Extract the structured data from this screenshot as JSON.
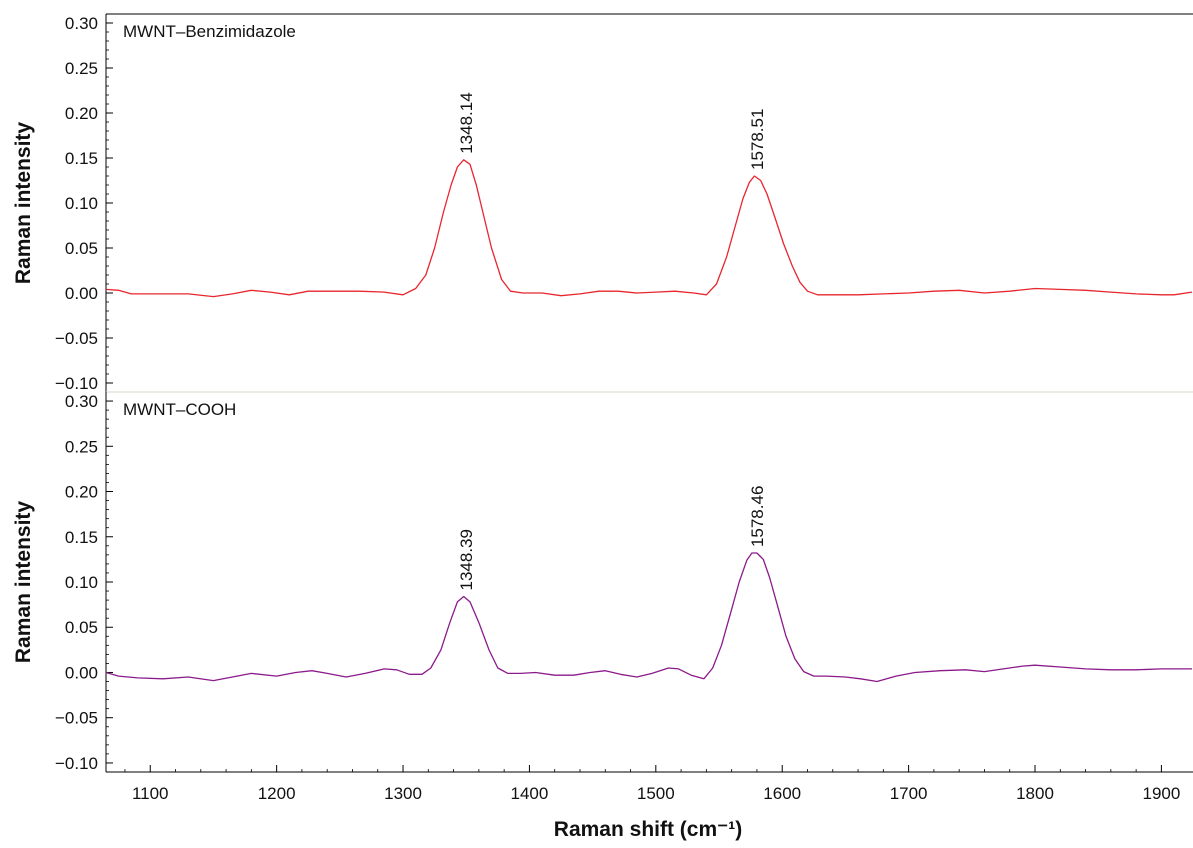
{
  "chart_data": [
    {
      "type": "line",
      "panel_label": "MWNT–Benzimidazole",
      "ylabel": "Raman intensity",
      "xlabel": "",
      "xlim": [
        1065,
        1925
      ],
      "ylim": [
        -0.11,
        0.31
      ],
      "x_ticks": [
        1100,
        1200,
        1300,
        1400,
        1500,
        1600,
        1700,
        1800,
        1900
      ],
      "x_tick_labels_shown": false,
      "y_ticks": [
        -0.1,
        -0.05,
        0.0,
        0.05,
        0.1,
        0.15,
        0.2,
        0.25,
        0.3
      ],
      "y_tick_labels": [
        "−0.10",
        "−0.05",
        "0.00",
        "0.05",
        "0.10",
        "0.15",
        "0.20",
        "0.25",
        "0.30"
      ],
      "series": [
        {
          "color": "#e8262e",
          "x": [
            1065,
            1075,
            1085,
            1095,
            1110,
            1130,
            1150,
            1165,
            1180,
            1195,
            1210,
            1225,
            1245,
            1265,
            1285,
            1300,
            1310,
            1318,
            1325,
            1332,
            1338,
            1343,
            1348,
            1353,
            1358,
            1364,
            1370,
            1378,
            1385,
            1395,
            1410,
            1425,
            1440,
            1455,
            1470,
            1485,
            1500,
            1515,
            1530,
            1540,
            1548,
            1556,
            1563,
            1569,
            1574,
            1578,
            1583,
            1588,
            1594,
            1601,
            1608,
            1614,
            1620,
            1628,
            1640,
            1660,
            1680,
            1700,
            1720,
            1740,
            1760,
            1780,
            1800,
            1820,
            1840,
            1860,
            1880,
            1900,
            1910,
            1925
          ],
          "y": [
            0.004,
            0.003,
            -0.001,
            -0.001,
            -0.001,
            -0.001,
            -0.004,
            -0.001,
            0.003,
            0.001,
            -0.002,
            0.002,
            0.002,
            0.002,
            0.001,
            -0.002,
            0.005,
            0.02,
            0.05,
            0.09,
            0.12,
            0.14,
            0.148,
            0.143,
            0.12,
            0.085,
            0.05,
            0.015,
            0.002,
            0.0,
            0.0,
            -0.003,
            -0.001,
            0.002,
            0.002,
            0.0,
            0.001,
            0.002,
            0.0,
            -0.002,
            0.01,
            0.04,
            0.075,
            0.105,
            0.123,
            0.13,
            0.125,
            0.11,
            0.085,
            0.055,
            0.03,
            0.012,
            0.002,
            -0.002,
            -0.002,
            -0.002,
            -0.001,
            0.0,
            0.002,
            0.003,
            0.0,
            0.002,
            0.005,
            0.004,
            0.003,
            0.001,
            -0.001,
            -0.002,
            -0.002,
            0.001
          ]
        }
      ],
      "annotations": [
        {
          "text": "1348.14",
          "x": 1348.14,
          "y": 0.148
        },
        {
          "text": "1578.51",
          "x": 1578.51,
          "y": 0.13
        }
      ]
    },
    {
      "type": "line",
      "panel_label": "MWNT–COOH",
      "ylabel": "Raman intensity",
      "xlabel": "Raman shift (cm⁻¹)",
      "xlim": [
        1065,
        1925
      ],
      "ylim": [
        -0.11,
        0.31
      ],
      "x_ticks": [
        1100,
        1200,
        1300,
        1400,
        1500,
        1600,
        1700,
        1800,
        1900
      ],
      "x_tick_labels": [
        "1100",
        "1200",
        "1300",
        "1400",
        "1500",
        "1600",
        "1700",
        "1800",
        "1900"
      ],
      "y_ticks": [
        -0.1,
        -0.05,
        0.0,
        0.05,
        0.1,
        0.15,
        0.2,
        0.25,
        0.3
      ],
      "y_tick_labels": [
        "−0.10",
        "−0.05",
        "0.00",
        "0.05",
        "0.10",
        "0.15",
        "0.20",
        "0.25",
        "0.30"
      ],
      "series": [
        {
          "color": "#8b1a8b",
          "x": [
            1065,
            1075,
            1090,
            1110,
            1130,
            1150,
            1165,
            1180,
            1200,
            1215,
            1228,
            1240,
            1255,
            1270,
            1285,
            1295,
            1305,
            1315,
            1322,
            1330,
            1337,
            1343,
            1348,
            1353,
            1360,
            1368,
            1375,
            1383,
            1393,
            1405,
            1420,
            1435,
            1448,
            1460,
            1472,
            1485,
            1497,
            1510,
            1518,
            1528,
            1538,
            1545,
            1552,
            1560,
            1566,
            1572,
            1576,
            1580,
            1585,
            1590,
            1596,
            1603,
            1610,
            1617,
            1625,
            1635,
            1650,
            1662,
            1675,
            1690,
            1705,
            1725,
            1745,
            1760,
            1775,
            1790,
            1800,
            1820,
            1840,
            1860,
            1880,
            1900,
            1925
          ],
          "y": [
            0.0,
            -0.004,
            -0.006,
            -0.007,
            -0.005,
            -0.009,
            -0.005,
            -0.001,
            -0.004,
            0.0,
            0.002,
            -0.001,
            -0.005,
            -0.001,
            0.004,
            0.003,
            -0.002,
            -0.002,
            0.005,
            0.025,
            0.055,
            0.078,
            0.084,
            0.078,
            0.055,
            0.025,
            0.005,
            -0.001,
            -0.001,
            0.0,
            -0.003,
            -0.003,
            0.0,
            0.002,
            -0.002,
            -0.005,
            -0.001,
            0.005,
            0.004,
            -0.003,
            -0.007,
            0.005,
            0.03,
            0.07,
            0.1,
            0.124,
            0.132,
            0.132,
            0.125,
            0.105,
            0.075,
            0.04,
            0.015,
            0.001,
            -0.004,
            -0.004,
            -0.005,
            -0.007,
            -0.01,
            -0.004,
            0.0,
            0.002,
            0.003,
            0.001,
            0.004,
            0.007,
            0.008,
            0.006,
            0.004,
            0.003,
            0.003,
            0.004,
            0.004
          ]
        }
      ],
      "annotations": [
        {
          "text": "1348.39",
          "x": 1348.39,
          "y": 0.084
        },
        {
          "text": "1578.46",
          "x": 1578.46,
          "y": 0.132
        }
      ]
    }
  ]
}
